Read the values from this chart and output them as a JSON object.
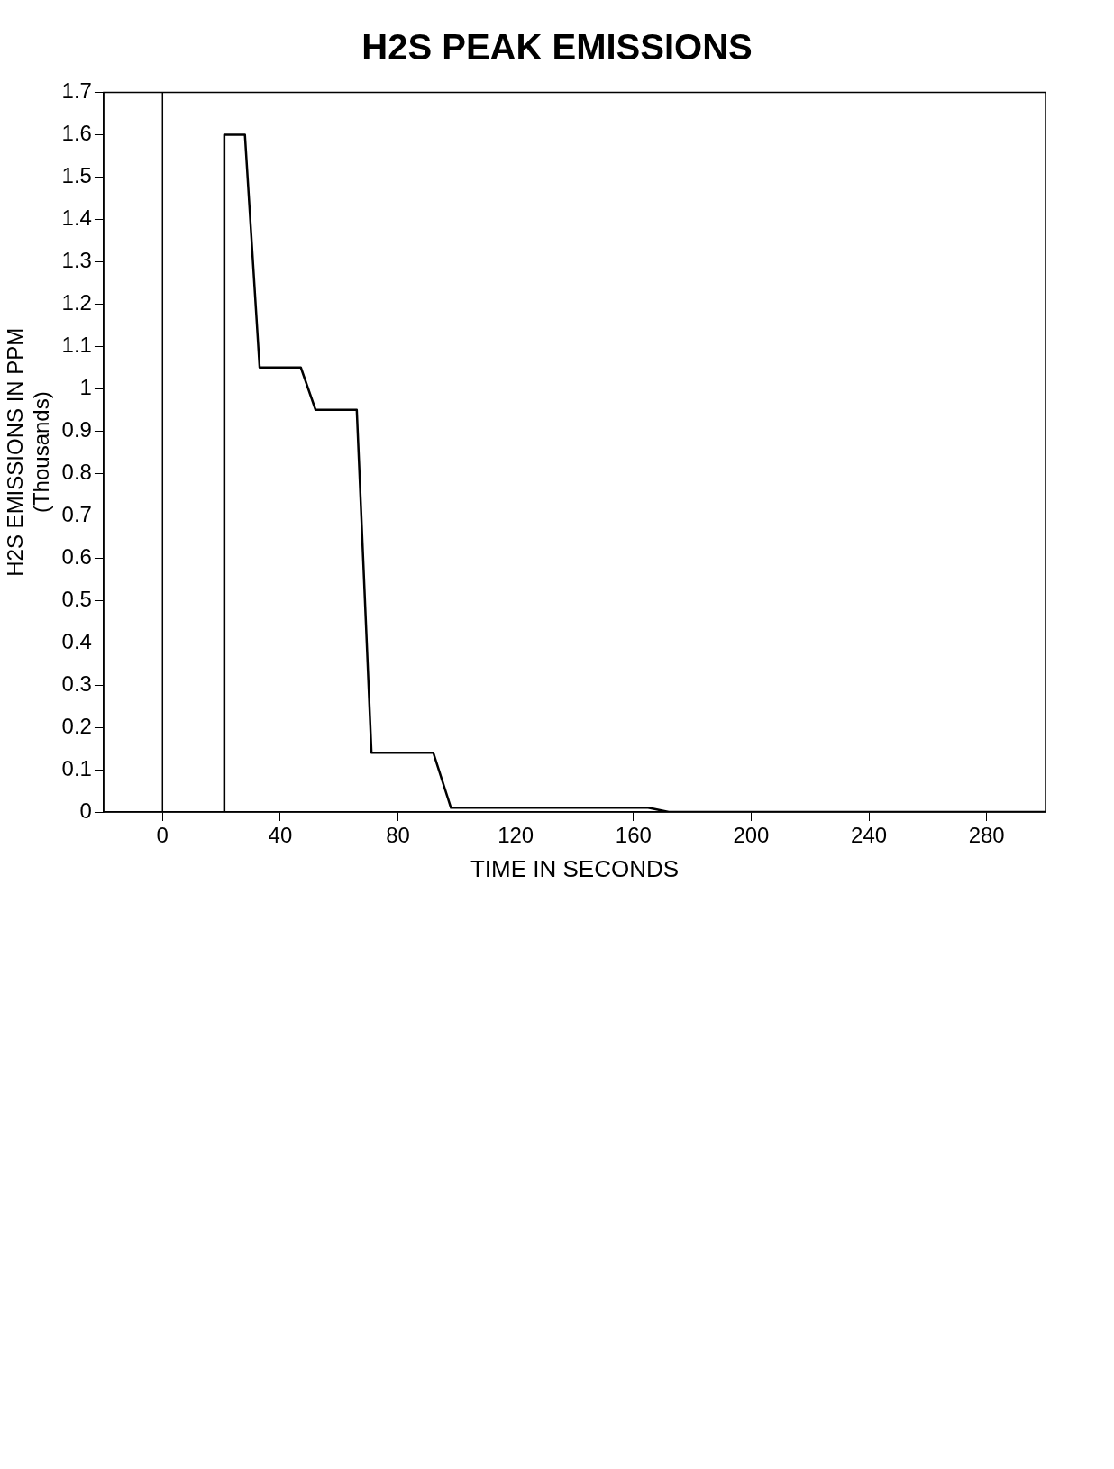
{
  "chart_data": {
    "type": "line",
    "title": "H2S PEAK EMISSIONS",
    "xlabel": "TIME IN SECONDS",
    "ylabel": "H2S EMISSIONS IN PPM",
    "annotations": [
      "(Thousands)"
    ],
    "x": [
      21,
      21,
      28,
      33,
      47,
      52,
      66,
      71,
      92,
      98,
      165,
      172,
      300
    ],
    "values": [
      0,
      1.6,
      1.6,
      1.05,
      1.05,
      0.95,
      0.95,
      0.14,
      0.14,
      0.01,
      0.01,
      0,
      0
    ],
    "color": "#000000",
    "marker": "none",
    "line_style": "solid",
    "xlim": [
      -20,
      300
    ],
    "xticks": [
      0,
      40,
      80,
      120,
      160,
      200,
      240,
      280
    ],
    "ylim": [
      0,
      1.7
    ],
    "yticks": [
      0,
      0.1,
      0.2,
      0.3,
      0.4,
      0.5,
      0.6,
      0.7,
      0.8,
      0.9,
      1,
      1.1,
      1.2,
      1.3,
      1.4,
      1.5,
      1.6,
      1.7
    ],
    "ref_lines": [
      {
        "axis": "x",
        "value": 0,
        "color": "#000000"
      }
    ],
    "grid": false,
    "legend": false
  }
}
